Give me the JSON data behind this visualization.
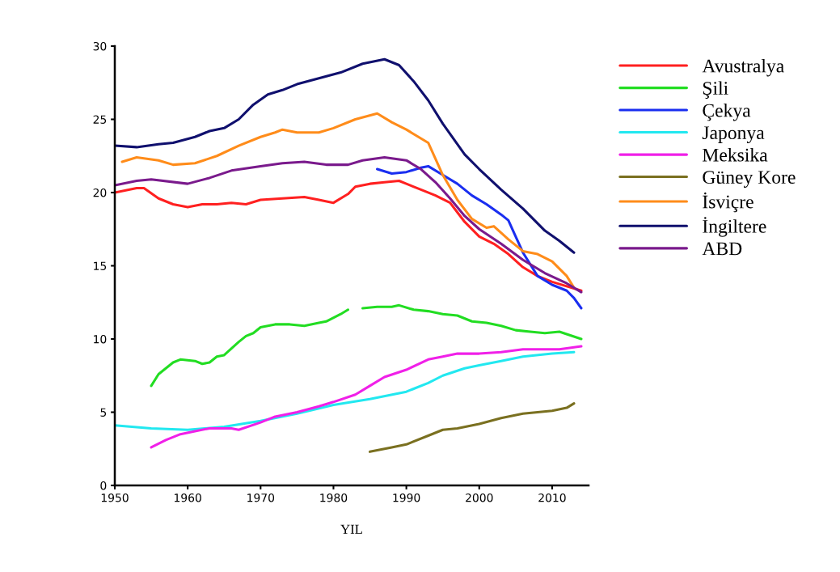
{
  "chart_data": {
    "type": "line",
    "xlabel": "YIL",
    "xlim": [
      1950,
      2015
    ],
    "xticks": [
      1950,
      1960,
      1970,
      1980,
      1990,
      2000,
      2010
    ],
    "ylim": [
      0,
      30
    ],
    "yticks": [
      0,
      5,
      10,
      15,
      20,
      25,
      30
    ],
    "grid": false,
    "legend": "top right",
    "marker": "none",
    "line_style": "solid",
    "series": [
      {
        "name": "Avustralya",
        "color": "#ff2020",
        "x": [
          1950,
          1953,
          1954,
          1956,
          1958,
          1960,
          1962,
          1964,
          1966,
          1968,
          1970,
          1973,
          1976,
          1978,
          1980,
          1982,
          1983,
          1985,
          1987,
          1989,
          1990,
          1992,
          1994,
          1996,
          1998,
          2000,
          2002,
          2004,
          2006,
          2008,
          2010,
          2014
        ],
        "values": [
          20.0,
          20.3,
          20.3,
          19.6,
          19.2,
          19.0,
          19.2,
          19.2,
          19.3,
          19.2,
          19.5,
          19.6,
          19.7,
          19.5,
          19.3,
          19.9,
          20.4,
          20.6,
          20.7,
          20.8,
          20.6,
          20.2,
          19.8,
          19.3,
          18.0,
          17.0,
          16.5,
          15.8,
          14.9,
          14.3,
          13.9,
          13.3
        ]
      },
      {
        "name": "Şili",
        "color": "#22dd22",
        "x": [
          1955,
          1956,
          1958,
          1959,
          1961,
          1962,
          1963,
          1964,
          1965,
          1967,
          1968,
          1969,
          1970,
          1972,
          1974,
          1976,
          1978,
          1979,
          1981,
          1982,
          1983,
          1984,
          1986,
          1988,
          1989,
          1991,
          1993,
          1995,
          1997,
          1999,
          2001,
          2003,
          2005,
          2007,
          2009,
          2011,
          2014
        ],
        "values": [
          6.8,
          7.6,
          8.4,
          8.6,
          8.5,
          8.3,
          8.4,
          8.8,
          8.9,
          9.8,
          10.2,
          10.4,
          10.8,
          11.0,
          11.0,
          10.9,
          11.1,
          11.2,
          11.7,
          12.0,
          null,
          12.1,
          12.2,
          12.2,
          12.3,
          12.0,
          11.9,
          11.7,
          11.6,
          11.2,
          11.1,
          10.9,
          10.6,
          10.5,
          10.4,
          10.5,
          10.0
        ]
      },
      {
        "name": "Çekya",
        "color": "#1a2ef0",
        "x": [
          1986,
          1988,
          1990,
          1992,
          1993,
          1995,
          1997,
          1999,
          2001,
          2003,
          2004,
          2005,
          2006,
          2008,
          2010,
          2012,
          2013,
          2014
        ],
        "values": [
          21.6,
          21.3,
          21.4,
          21.7,
          21.8,
          21.2,
          20.6,
          19.8,
          19.2,
          18.5,
          18.1,
          17.0,
          15.9,
          14.3,
          13.7,
          13.3,
          12.8,
          12.1
        ]
      },
      {
        "name": "Japonya",
        "color": "#22e8f0",
        "x": [
          1950,
          1955,
          1960,
          1965,
          1970,
          1975,
          1980,
          1985,
          1990,
          1993,
          1995,
          1998,
          2000,
          2003,
          2006,
          2010,
          2013
        ],
        "values": [
          4.1,
          3.9,
          3.8,
          4.0,
          4.4,
          4.9,
          5.5,
          5.9,
          6.4,
          7.0,
          7.5,
          8.0,
          8.2,
          8.5,
          8.8,
          9.0,
          9.1
        ]
      },
      {
        "name": "Meksika",
        "color": "#f020e8",
        "x": [
          1955,
          1957,
          1959,
          1961,
          1963,
          1966,
          1967,
          1970,
          1972,
          1975,
          1978,
          1980,
          1983,
          1985,
          1987,
          1990,
          1993,
          1995,
          1997,
          2000,
          2003,
          2006,
          2009,
          2011,
          2014
        ],
        "values": [
          2.6,
          3.1,
          3.5,
          3.7,
          3.9,
          3.9,
          3.8,
          4.3,
          4.7,
          5.0,
          5.4,
          5.7,
          6.2,
          6.8,
          7.4,
          7.9,
          8.6,
          8.8,
          9.0,
          9.0,
          9.1,
          9.3,
          9.3,
          9.3,
          9.5
        ]
      },
      {
        "name": "Güney Kore",
        "color": "#7a7020",
        "x": [
          1985,
          1988,
          1990,
          1993,
          1995,
          1997,
          2000,
          2003,
          2006,
          2010,
          2012,
          2013
        ],
        "values": [
          2.3,
          2.6,
          2.8,
          3.4,
          3.8,
          3.9,
          4.2,
          4.6,
          4.9,
          5.1,
          5.3,
          5.6
        ]
      },
      {
        "name": "İsviçre",
        "color": "#ff8c1a",
        "x": [
          1951,
          1953,
          1956,
          1958,
          1961,
          1964,
          1967,
          1970,
          1972,
          1973,
          1975,
          1978,
          1980,
          1983,
          1986,
          1988,
          1990,
          1993,
          1995,
          1997,
          1999,
          2001,
          2002,
          2004,
          2006,
          2008,
          2010,
          2012,
          2013
        ],
        "values": [
          22.1,
          22.4,
          22.2,
          21.9,
          22.0,
          22.5,
          23.2,
          23.8,
          24.1,
          24.3,
          24.1,
          24.1,
          24.4,
          25.0,
          25.4,
          24.8,
          24.3,
          23.4,
          21.2,
          19.5,
          18.2,
          17.6,
          17.7,
          16.8,
          16.0,
          15.8,
          15.3,
          14.3,
          13.5
        ]
      },
      {
        "name": "İngiltere",
        "color": "#10106e",
        "x": [
          1950,
          1953,
          1956,
          1958,
          1961,
          1963,
          1965,
          1967,
          1969,
          1971,
          1973,
          1975,
          1978,
          1981,
          1984,
          1987,
          1989,
          1991,
          1993,
          1995,
          1998,
          2000,
          2003,
          2006,
          2009,
          2011,
          2013
        ],
        "values": [
          23.2,
          23.1,
          23.3,
          23.4,
          23.8,
          24.2,
          24.4,
          25.0,
          26.0,
          26.7,
          27.0,
          27.4,
          27.8,
          28.2,
          28.8,
          29.1,
          28.7,
          27.6,
          26.3,
          24.7,
          22.6,
          21.6,
          20.2,
          18.9,
          17.4,
          16.7,
          15.9
        ]
      },
      {
        "name": "ABD",
        "color": "#7a1a8c",
        "x": [
          1950,
          1953,
          1955,
          1960,
          1963,
          1966,
          1970,
          1973,
          1976,
          1979,
          1982,
          1984,
          1987,
          1990,
          1992,
          1994,
          1996,
          1998,
          2000,
          2003,
          2006,
          2009,
          2012,
          2014
        ],
        "values": [
          20.5,
          20.8,
          20.9,
          20.6,
          21.0,
          21.5,
          21.8,
          22.0,
          22.1,
          21.9,
          21.9,
          22.2,
          22.4,
          22.2,
          21.6,
          20.7,
          19.6,
          18.4,
          17.5,
          16.5,
          15.4,
          14.5,
          13.8,
          13.2
        ]
      }
    ]
  }
}
